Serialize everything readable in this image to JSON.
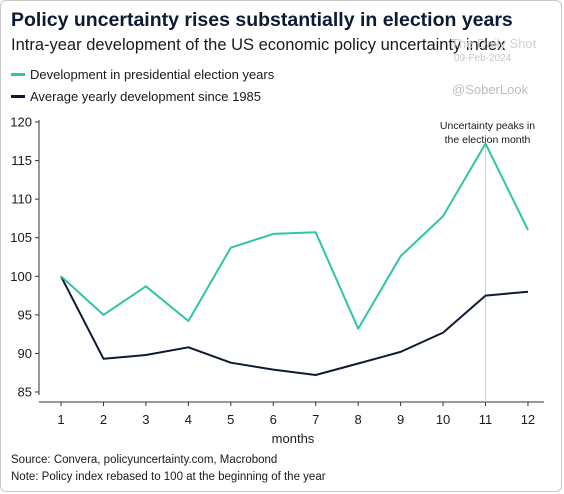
{
  "title": "Policy uncertainty rises substantially in election years",
  "subtitle": "Intra-year development of the US economic policy uncertainty index",
  "watermark": {
    "site": "The Daily Shot",
    "date": "09-Feb-2024",
    "handle": "@SoberLook"
  },
  "colors": {
    "election": "#2fc5a6",
    "average": "#0c1a33",
    "annotation_line": "#cfcfcf"
  },
  "source": "Source: Convera, policyuncertainty.com, Macrobond",
  "note": "Note: Policy index rebased to 100 at the beginning of the year",
  "chart_data": {
    "type": "line",
    "title": "Policy uncertainty rises substantially in election years",
    "subtitle": "Intra-year development of the US economic policy uncertainty index",
    "xlabel": "months",
    "ylabel": "",
    "x": [
      1,
      2,
      3,
      4,
      5,
      6,
      7,
      8,
      9,
      10,
      11,
      12
    ],
    "x_ticks": [
      "1",
      "2",
      "3",
      "4",
      "5",
      "6",
      "7",
      "8",
      "9",
      "10",
      "11",
      "12"
    ],
    "ylim": [
      85,
      120
    ],
    "y_ticks": [
      "85",
      "90",
      "95",
      "100",
      "105",
      "110",
      "115",
      "120"
    ],
    "grid": false,
    "legend_position": "top-left",
    "series": [
      {
        "name": "Development in presidential election years",
        "color": "#2fc5a6",
        "values": [
          100.0,
          95.0,
          98.7,
          94.2,
          103.7,
          105.5,
          105.7,
          93.2,
          102.6,
          107.8,
          117.2,
          106.0
        ]
      },
      {
        "name": "Average yearly development since 1985",
        "color": "#0c1a33",
        "values": [
          100.0,
          89.3,
          89.8,
          90.8,
          88.8,
          87.9,
          87.2,
          88.7,
          90.2,
          92.7,
          97.5,
          98.0
        ]
      }
    ],
    "annotations": [
      {
        "x": 11,
        "lines": [
          "Uncertainty peaks in",
          "the election month"
        ]
      }
    ]
  }
}
